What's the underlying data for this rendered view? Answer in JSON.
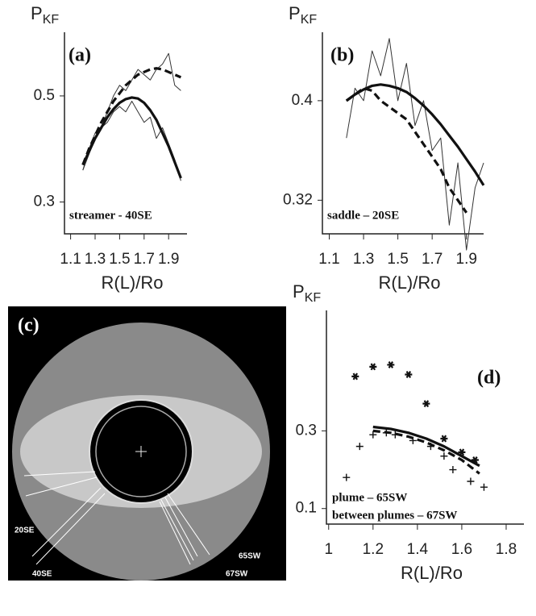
{
  "chart_data": [
    {
      "type": "line",
      "ylabel": "P",
      "ylabel_sub": "KF",
      "panel": "(a)",
      "xlabel": "R(L)/Ro",
      "annotations": [
        "streamer - 40SE"
      ],
      "xlim": [
        1.05,
        2.05
      ],
      "ylim": [
        0.24,
        0.62
      ],
      "xticks": [
        1.1,
        1.3,
        1.5,
        1.7,
        1.9
      ],
      "yticks": [
        0.3,
        0.5
      ],
      "x": [
        1.2,
        1.25,
        1.3,
        1.35,
        1.4,
        1.45,
        1.5,
        1.55,
        1.6,
        1.65,
        1.7,
        1.75,
        1.8,
        1.85,
        1.9,
        1.95,
        2.0
      ],
      "series": [
        {
          "style": "thin",
          "color": "#333333",
          "values": [
            0.36,
            0.4,
            0.43,
            0.44,
            0.47,
            0.5,
            0.52,
            0.51,
            0.53,
            0.55,
            0.54,
            0.53,
            0.55,
            0.56,
            0.58,
            0.52,
            0.51
          ]
        },
        {
          "style": "thin",
          "color": "#333333",
          "values": [
            0.36,
            0.39,
            0.42,
            0.44,
            0.45,
            0.47,
            0.48,
            0.47,
            0.49,
            0.47,
            0.45,
            0.46,
            0.42,
            0.44,
            0.41,
            0.38,
            0.34
          ]
        },
        {
          "style": "dashed",
          "color": "#111111",
          "values": [
            0.37,
            0.4,
            0.425,
            0.45,
            0.47,
            0.49,
            0.505,
            0.52,
            0.53,
            0.54,
            0.545,
            0.55,
            0.552,
            0.55,
            0.545,
            0.54,
            0.535
          ]
        },
        {
          "style": "thick",
          "color": "#111111",
          "values": [
            0.37,
            0.395,
            0.42,
            0.44,
            0.46,
            0.475,
            0.487,
            0.494,
            0.497,
            0.495,
            0.487,
            0.473,
            0.455,
            0.43,
            0.405,
            0.375,
            0.345
          ]
        }
      ]
    },
    {
      "type": "line",
      "ylabel": "P",
      "ylabel_sub": "KF",
      "panel": "(b)",
      "xlabel": "R(L)/Ro",
      "annotations": [
        "saddle – 20SE"
      ],
      "xlim": [
        1.06,
        2.0
      ],
      "ylim": [
        0.293,
        0.455
      ],
      "xticks": [
        1.1,
        1.3,
        1.5,
        1.7,
        1.9
      ],
      "yticks": [
        0.32,
        0.4
      ],
      "x": [
        1.2,
        1.25,
        1.3,
        1.35,
        1.4,
        1.45,
        1.5,
        1.55,
        1.6,
        1.65,
        1.7,
        1.75,
        1.8,
        1.85,
        1.9,
        1.95,
        2.0
      ],
      "series": [
        {
          "style": "thin",
          "color": "#333333",
          "values": [
            0.37,
            0.41,
            0.4,
            0.44,
            0.42,
            0.45,
            0.4,
            0.43,
            0.38,
            0.4,
            0.36,
            0.37,
            0.3,
            0.35,
            0.28,
            0.33,
            0.35
          ]
        },
        {
          "style": "dashed",
          "color": "#111111",
          "values": [
            0.4,
            0.405,
            0.41,
            0.408,
            0.4,
            0.395,
            0.39,
            0.385,
            0.375,
            0.365,
            0.355,
            0.345,
            0.33,
            0.32,
            0.31,
            null,
            null
          ]
        },
        {
          "style": "thick",
          "color": "#111111",
          "values": [
            0.4,
            0.405,
            0.409,
            0.412,
            0.413,
            0.412,
            0.41,
            0.407,
            0.402,
            0.396,
            0.389,
            0.381,
            0.372,
            0.363,
            0.353,
            0.343,
            0.332
          ]
        }
      ]
    },
    {
      "type": "scatter",
      "ylabel": "P",
      "ylabel_sub": "KF",
      "panel": "(d)",
      "xlabel": "R(L)/Ro",
      "annotations": [
        "plume – 65SW",
        "between plumes – 67SW"
      ],
      "xlim": [
        0.99,
        1.88
      ],
      "ylim": [
        0.06,
        0.61
      ],
      "xticks": [
        1,
        1.2,
        1.4,
        1.6,
        1.8
      ],
      "yticks": [
        0.1,
        0.3
      ],
      "series": [
        {
          "style": "star",
          "color": "#111111",
          "x": [
            1.12,
            1.2,
            1.28,
            1.36,
            1.44,
            1.52,
            1.6,
            1.66
          ],
          "values": [
            0.44,
            0.465,
            0.47,
            0.445,
            0.37,
            0.28,
            0.245,
            0.225
          ]
        },
        {
          "style": "plus",
          "color": "#111111",
          "x": [
            1.08,
            1.14,
            1.2,
            1.26,
            1.3,
            1.38,
            1.46,
            1.52,
            1.56,
            1.64,
            1.7
          ],
          "values": [
            0.18,
            0.26,
            0.29,
            0.295,
            0.29,
            0.275,
            0.26,
            0.235,
            0.2,
            0.17,
            0.155
          ]
        },
        {
          "style": "thick",
          "color": "#111111",
          "x": [
            1.2,
            1.28,
            1.36,
            1.44,
            1.52,
            1.6,
            1.68
          ],
          "values": [
            0.31,
            0.305,
            0.295,
            0.28,
            0.26,
            0.235,
            0.21
          ]
        },
        {
          "style": "dashed",
          "color": "#111111",
          "x": [
            1.2,
            1.28,
            1.36,
            1.44,
            1.52,
            1.6,
            1.68
          ],
          "values": [
            0.3,
            0.295,
            0.285,
            0.27,
            0.25,
            0.225,
            0.19
          ]
        }
      ]
    }
  ],
  "image": {
    "panel": "(c)",
    "labels": [
      "20SE",
      "40SE",
      "65SW",
      "67SW"
    ]
  }
}
